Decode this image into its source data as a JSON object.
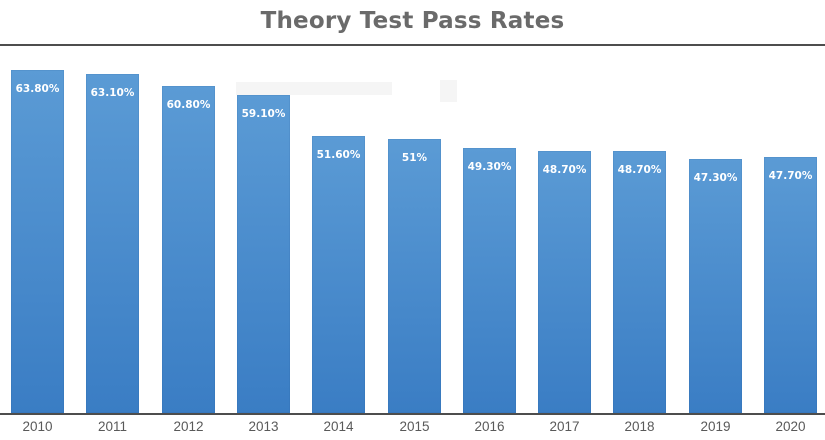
{
  "chart_data": {
    "type": "bar",
    "title": "Theory Test Pass Rates",
    "xlabel": "",
    "ylabel": "",
    "categories": [
      "2010",
      "2011",
      "2012",
      "2013",
      "2014",
      "2015",
      "2016",
      "2017",
      "2018",
      "2019",
      "2020"
    ],
    "values": [
      63.8,
      63.1,
      60.8,
      59.1,
      51.6,
      51,
      49.3,
      48.7,
      48.7,
      47.3,
      47.7
    ],
    "value_labels": [
      "63.80%",
      "63.10%",
      "60.80%",
      "59.10%",
      "51.60%",
      "51%",
      "49.30%",
      "48.70%",
      "48.70%",
      "47.30%",
      "47.70%"
    ],
    "ylim": [
      0,
      70
    ],
    "grid": false,
    "legend": false,
    "y_axis_labels_visible": false,
    "colors": {
      "bar_top": "#5b9bd5",
      "bar_bottom": "#3a7dc4",
      "title": "#6a6a6a",
      "axis_line": "#4d4d4d",
      "tick_label": "#595959",
      "value_label": "#ffffff"
    }
  }
}
